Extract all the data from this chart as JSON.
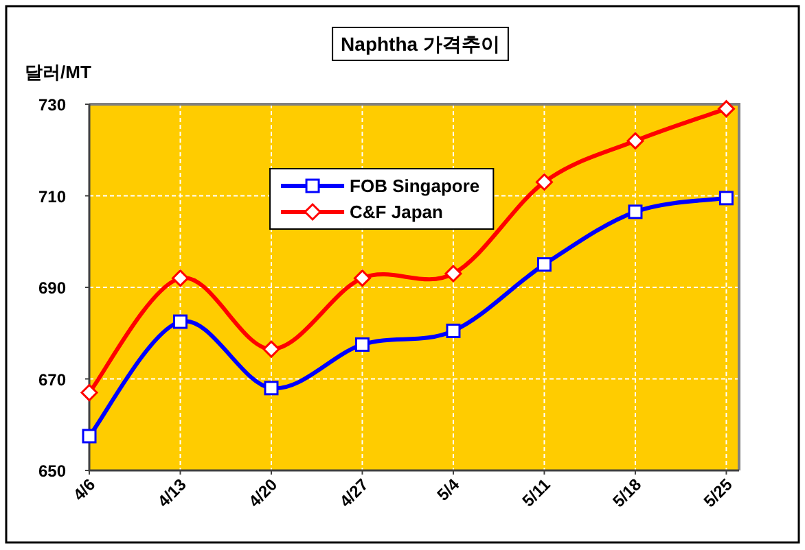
{
  "chart_data": {
    "type": "line",
    "title": "Naphtha 가격추이",
    "ylabel": "달러/MT",
    "categories": [
      "4/6",
      "4/13",
      "4/20",
      "4/27",
      "5/4",
      "5/11",
      "5/18",
      "5/25"
    ],
    "series": [
      {
        "name": "FOB Singapore",
        "color": "#0000ff",
        "marker": "square",
        "values": [
          657.5,
          682.5,
          668,
          677.5,
          680.5,
          695,
          706.5,
          709.5
        ]
      },
      {
        "name": "C&F Japan",
        "color": "#ff0000",
        "marker": "diamond",
        "values": [
          667,
          692,
          676.5,
          692,
          693,
          713,
          722,
          729
        ]
      }
    ],
    "ylim": [
      650,
      730
    ],
    "yticks": [
      650,
      670,
      690,
      710,
      730
    ],
    "grid": true,
    "legend": "top"
  }
}
